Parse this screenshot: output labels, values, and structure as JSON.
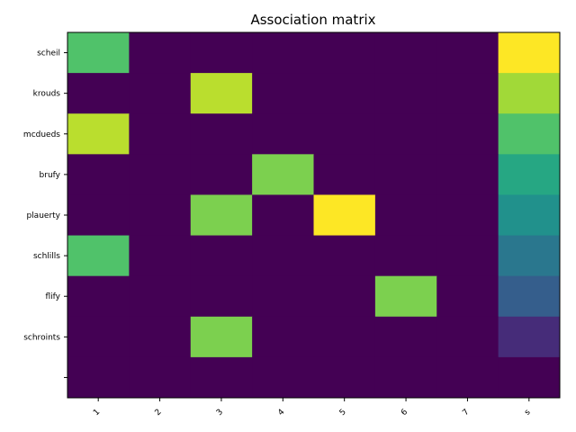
{
  "chart_data": {
    "type": "heatmap",
    "title": "Association matrix",
    "xlabel": "",
    "ylabel": "",
    "x_categories": [
      "1",
      "2",
      "3",
      "4",
      "5",
      "6",
      "7",
      "s"
    ],
    "y_categories": [
      "scheil",
      "krouds",
      "mcdueds",
      "brufy",
      "plauerty",
      "schlills",
      "flify",
      "schroints",
      ""
    ],
    "colormap": "viridis",
    "value_range": [
      0,
      1
    ],
    "values": [
      [
        0.72,
        0,
        0,
        0,
        0,
        0,
        0,
        1.0
      ],
      [
        0,
        0,
        0.9,
        0,
        0,
        0,
        0,
        0.86
      ],
      [
        0.9,
        0,
        0,
        0,
        0,
        0,
        0,
        0.72
      ],
      [
        0,
        0,
        0,
        0.8,
        0,
        0,
        0,
        0.6
      ],
      [
        0,
        0,
        0.8,
        0,
        1.0,
        0,
        0,
        0.5
      ],
      [
        0.72,
        0,
        0,
        0,
        0,
        0,
        0,
        0.4
      ],
      [
        0,
        0,
        0,
        0,
        0,
        0.8,
        0,
        0.3
      ],
      [
        0,
        0,
        0.8,
        0,
        0,
        0,
        0,
        0.15
      ],
      [
        0,
        0,
        0,
        0,
        0,
        0,
        0,
        0
      ]
    ],
    "grid": false,
    "legend": "none"
  }
}
